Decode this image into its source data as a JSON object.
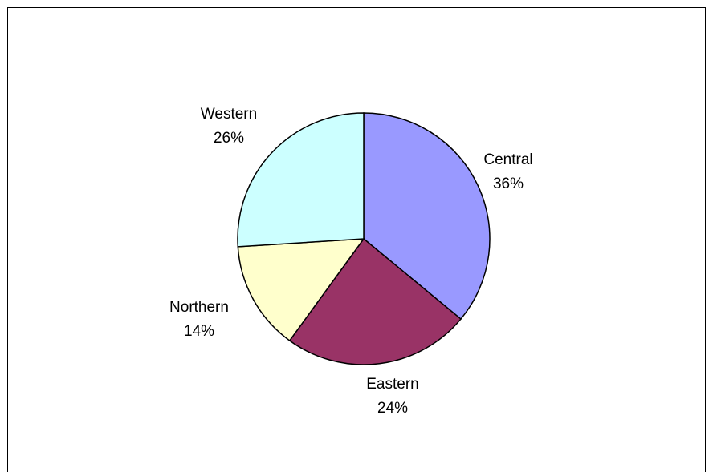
{
  "chart_data": {
    "type": "pie",
    "title": "",
    "slices": [
      {
        "label": "Central",
        "percent_text": "36%",
        "value": 36,
        "color": "#9999ff"
      },
      {
        "label": "Eastern",
        "percent_text": "24%",
        "value": 24,
        "color": "#993366"
      },
      {
        "label": "Northern",
        "percent_text": "14%",
        "value": 14,
        "color": "#ffffcc"
      },
      {
        "label": "Western",
        "percent_text": "26%",
        "value": 26,
        "color": "#ccffff"
      }
    ],
    "legend": "none",
    "labels": "outside, category name and percentage"
  }
}
